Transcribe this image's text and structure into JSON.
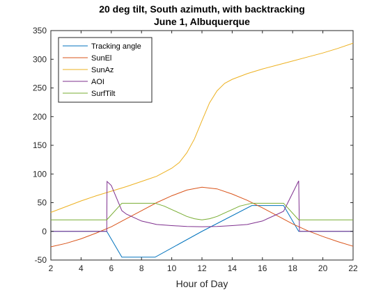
{
  "chart_data": {
    "type": "line",
    "title": [
      "20 deg tilt, South azimuth, with backtracking",
      "June 1, Albuquerque"
    ],
    "xlabel": "Hour of Day",
    "ylabel": "",
    "xlim": [
      2,
      22
    ],
    "ylim": [
      -50,
      350
    ],
    "xticks": [
      "2",
      "4",
      "6",
      "8",
      "10",
      "12",
      "14",
      "16",
      "18",
      "20",
      "22"
    ],
    "yticks": [
      "-50",
      "0",
      "50",
      "100",
      "150",
      "200",
      "250",
      "300",
      "350"
    ],
    "grid": false,
    "legend_position": "top-left",
    "series": [
      {
        "name": "Tracking angle",
        "color": "#0072BD",
        "points": [
          [
            2,
            0
          ],
          [
            5.7,
            0
          ],
          [
            6.7,
            -45
          ],
          [
            8.9,
            -45
          ],
          [
            12,
            0
          ],
          [
            15.3,
            45
          ],
          [
            17.4,
            45
          ],
          [
            18.4,
            0
          ],
          [
            22,
            0
          ]
        ]
      },
      {
        "name": "SunEl",
        "color": "#D95319",
        "points": [
          [
            2,
            -27
          ],
          [
            3,
            -21
          ],
          [
            4,
            -13
          ],
          [
            5,
            -3
          ],
          [
            6,
            8
          ],
          [
            7,
            22
          ],
          [
            8,
            36
          ],
          [
            9,
            50
          ],
          [
            10,
            62
          ],
          [
            11,
            72
          ],
          [
            12,
            77
          ],
          [
            13,
            74
          ],
          [
            14,
            65
          ],
          [
            15,
            54
          ],
          [
            16,
            41
          ],
          [
            17,
            27
          ],
          [
            18,
            13
          ],
          [
            19,
            1
          ],
          [
            20,
            -9
          ],
          [
            21,
            -18
          ],
          [
            22,
            -26
          ]
        ]
      },
      {
        "name": "SunAz",
        "color": "#EDB120",
        "points": [
          [
            2,
            33
          ],
          [
            3,
            43
          ],
          [
            4,
            53
          ],
          [
            5,
            62
          ],
          [
            6,
            70
          ],
          [
            7,
            78
          ],
          [
            8,
            87
          ],
          [
            9,
            96
          ],
          [
            10,
            110
          ],
          [
            10.5,
            120
          ],
          [
            11,
            137
          ],
          [
            11.5,
            161
          ],
          [
            12,
            193
          ],
          [
            12.5,
            224
          ],
          [
            13,
            245
          ],
          [
            13.5,
            258
          ],
          [
            14,
            265
          ],
          [
            15,
            275
          ],
          [
            16,
            283
          ],
          [
            17,
            290
          ],
          [
            18,
            297
          ],
          [
            19,
            304
          ],
          [
            20,
            311
          ],
          [
            21,
            319
          ],
          [
            22,
            328
          ]
        ]
      },
      {
        "name": "AOI",
        "color": "#7E2F8E",
        "points": [
          [
            2,
            0
          ],
          [
            5.7,
            0
          ],
          [
            5.72,
            87
          ],
          [
            6.0,
            80
          ],
          [
            6.7,
            36
          ],
          [
            7,
            30
          ],
          [
            8,
            18
          ],
          [
            9,
            12
          ],
          [
            10,
            10
          ],
          [
            11,
            8.5
          ],
          [
            12,
            8
          ],
          [
            13,
            8.5
          ],
          [
            14,
            10
          ],
          [
            15,
            12
          ],
          [
            16,
            18
          ],
          [
            17,
            30
          ],
          [
            17.4,
            35
          ],
          [
            18.4,
            88
          ],
          [
            18.45,
            0
          ],
          [
            22,
            0
          ]
        ]
      },
      {
        "name": "SurfTilt",
        "color": "#77AC30",
        "points": [
          [
            2,
            20
          ],
          [
            5.7,
            20
          ],
          [
            6.7,
            49
          ],
          [
            8.9,
            49
          ],
          [
            9.5,
            44
          ],
          [
            10,
            38
          ],
          [
            10.5,
            32
          ],
          [
            11,
            26
          ],
          [
            11.5,
            22
          ],
          [
            12,
            20
          ],
          [
            12.5,
            22
          ],
          [
            13,
            26
          ],
          [
            13.5,
            32
          ],
          [
            14,
            38
          ],
          [
            14.5,
            44
          ],
          [
            15.3,
            49
          ],
          [
            17.4,
            49
          ],
          [
            18.4,
            20
          ],
          [
            22,
            20
          ]
        ]
      }
    ]
  }
}
